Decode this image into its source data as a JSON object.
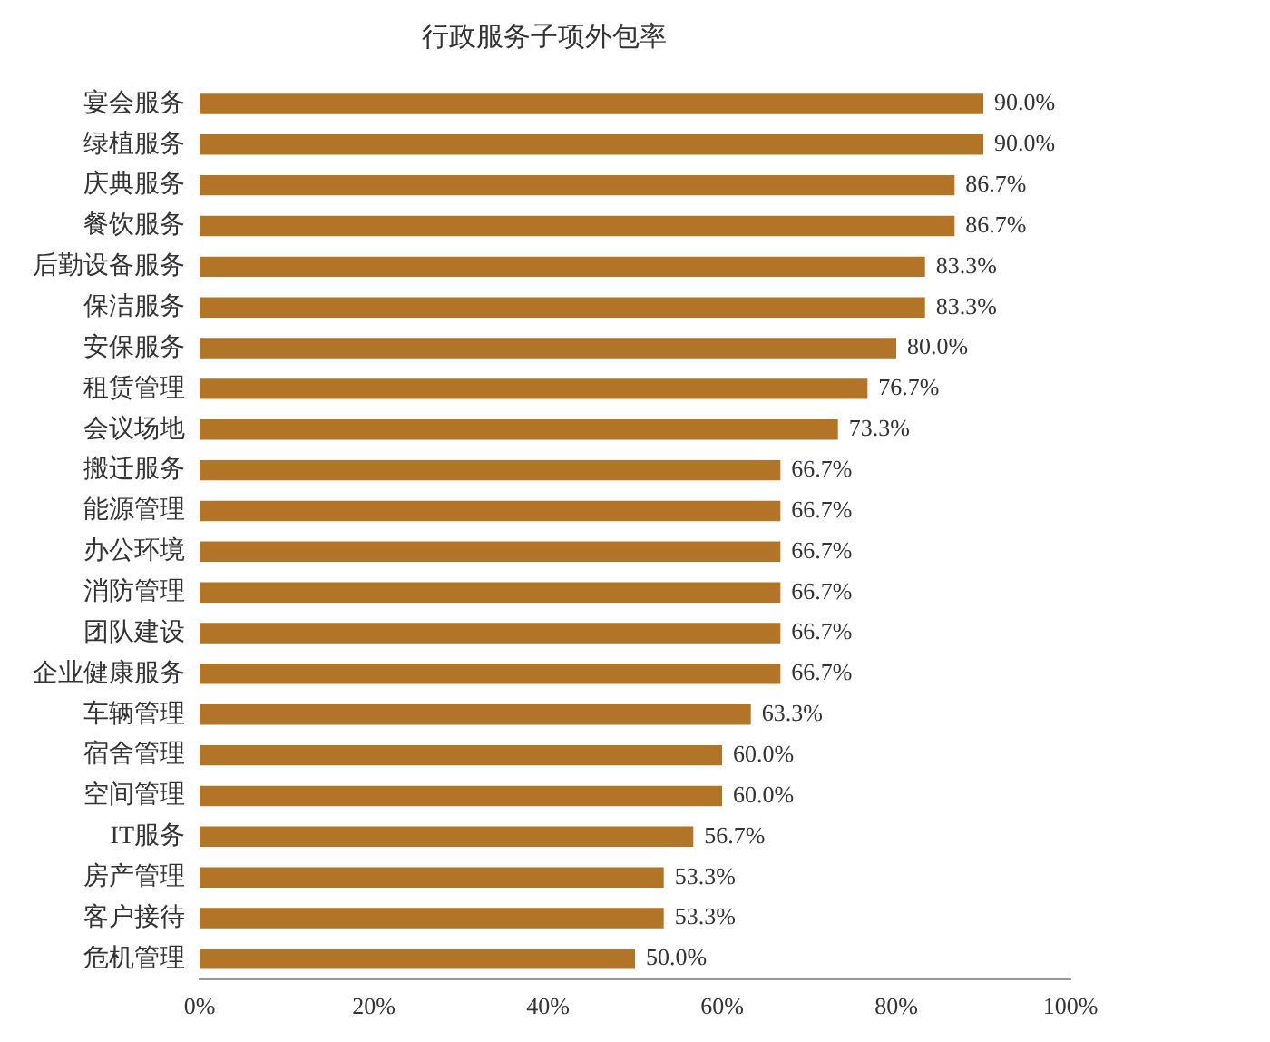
{
  "chart_data": {
    "type": "bar",
    "orientation": "horizontal",
    "title": "行政服务子项外包率",
    "categories": [
      "宴会服务",
      "绿植服务",
      "庆典服务",
      "餐饮服务",
      "后勤设备服务",
      "保洁服务",
      "安保服务",
      "租赁管理",
      "会议场地",
      "搬迁服务",
      "能源管理",
      "办公环境",
      "消防管理",
      "团队建设",
      "企业健康服务",
      "车辆管理",
      "宿舍管理",
      "空间管理",
      "IT服务",
      "房产管理",
      "客户接待",
      "危机管理"
    ],
    "values": [
      90.0,
      90.0,
      86.7,
      86.7,
      83.3,
      83.3,
      80.0,
      76.7,
      73.3,
      66.7,
      66.7,
      66.7,
      66.7,
      66.7,
      66.7,
      63.3,
      60.0,
      60.0,
      56.7,
      53.3,
      53.3,
      50.0
    ],
    "value_labels": [
      "90.0%",
      "90.0%",
      "86.7%",
      "86.7%",
      "83.3%",
      "83.3%",
      "80.0%",
      "76.7%",
      "73.3%",
      "66.7%",
      "66.7%",
      "66.7%",
      "66.7%",
      "66.7%",
      "66.7%",
      "63.3%",
      "60.0%",
      "60.0%",
      "56.7%",
      "53.3%",
      "53.3%",
      "50.0%"
    ],
    "color": "#b27527",
    "xlim": [
      0,
      100
    ],
    "xticks": [
      {
        "value": 0,
        "label": "0%"
      },
      {
        "value": 20,
        "label": "20%"
      },
      {
        "value": 40,
        "label": "40%"
      },
      {
        "value": 60,
        "label": "60%"
      },
      {
        "value": 80,
        "label": "80%"
      },
      {
        "value": 100,
        "label": "100%"
      }
    ],
    "grid": false,
    "legend": false
  }
}
